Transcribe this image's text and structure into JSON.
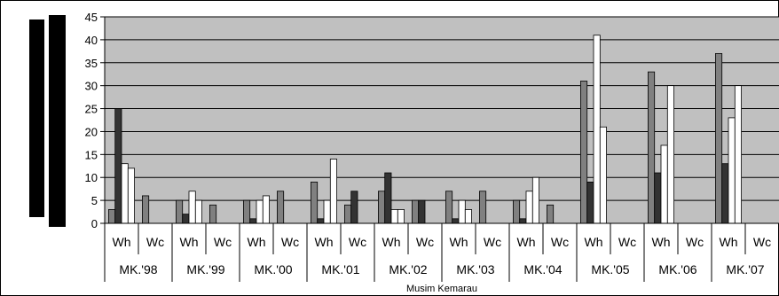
{
  "chart_data": {
    "type": "bar",
    "xlabel": "Musim Kemarau",
    "ylabel": "",
    "ylim": [
      0,
      45
    ],
    "yticks": [
      0,
      5,
      10,
      15,
      20,
      25,
      30,
      35,
      40,
      45
    ],
    "grid": true,
    "legend": "none",
    "colors": {
      "plot_bg": "#c0c0c0",
      "series": [
        "#808080",
        "#333333",
        "#ffffff",
        "#ffffff"
      ]
    },
    "groups": [
      {
        "label": "MK.'98",
        "subcategories": [
          {
            "label": "Wh",
            "values": [
              3,
              25,
              13,
              12
            ]
          },
          {
            "label": "Wc",
            "values": [
              6
            ]
          }
        ]
      },
      {
        "label": "MK.'99",
        "subcategories": [
          {
            "label": "Wh",
            "values": [
              5,
              2,
              7,
              5
            ]
          },
          {
            "label": "Wc",
            "values": [
              4
            ]
          }
        ]
      },
      {
        "label": "MK.'00",
        "subcategories": [
          {
            "label": "Wh",
            "values": [
              5,
              1,
              5,
              6
            ]
          },
          {
            "label": "Wc",
            "values": [
              7
            ]
          }
        ]
      },
      {
        "label": "MK.'01",
        "subcategories": [
          {
            "label": "Wh",
            "values": [
              9,
              1,
              5,
              14
            ]
          },
          {
            "label": "Wc",
            "values": [
              4,
              7
            ]
          }
        ]
      },
      {
        "label": "MK.'02",
        "subcategories": [
          {
            "label": "Wh",
            "values": [
              7,
              11,
              3,
              3
            ]
          },
          {
            "label": "Wc",
            "values": [
              5,
              5
            ]
          }
        ]
      },
      {
        "label": "MK.'03",
        "subcategories": [
          {
            "label": "Wh",
            "values": [
              7,
              1,
              5,
              3
            ]
          },
          {
            "label": "Wc",
            "values": [
              7
            ]
          }
        ]
      },
      {
        "label": "MK.'04",
        "subcategories": [
          {
            "label": "Wh",
            "values": [
              5,
              1,
              7,
              10
            ]
          },
          {
            "label": "Wc",
            "values": [
              4
            ]
          }
        ]
      },
      {
        "label": "MK.'05",
        "subcategories": [
          {
            "label": "Wh",
            "values": [
              31,
              9,
              41,
              21
            ]
          },
          {
            "label": "Wc",
            "values": []
          }
        ]
      },
      {
        "label": "MK.'06",
        "subcategories": [
          {
            "label": "Wh",
            "values": [
              33,
              11,
              17,
              30
            ]
          },
          {
            "label": "Wc",
            "values": []
          }
        ]
      },
      {
        "label": "MK.'07",
        "subcategories": [
          {
            "label": "Wh",
            "values": [
              37,
              13,
              23,
              30
            ]
          },
          {
            "label": "Wc",
            "values": []
          }
        ]
      }
    ]
  }
}
